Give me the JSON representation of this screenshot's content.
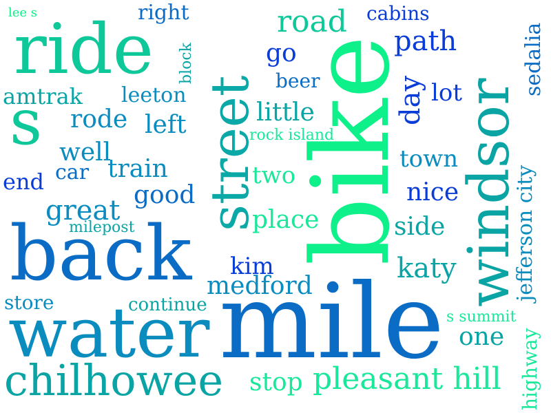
{
  "words": [
    {
      "text": "mile",
      "color": "#0a6cc4"
    },
    {
      "text": "bike",
      "color": "#0df08a"
    },
    {
      "text": "back",
      "color": "#0a6cc4"
    },
    {
      "text": "water",
      "color": "#0a8cbf"
    },
    {
      "text": "windsor",
      "color": "#0aa4a4"
    },
    {
      "text": "ride",
      "color": "#0fc89a"
    },
    {
      "text": "street",
      "color": "#0aa9a8"
    },
    {
      "text": "s",
      "color": "#0fc89a"
    },
    {
      "text": "chilhowee",
      "color": "#0aa4a4"
    },
    {
      "text": "pleasant hill",
      "color": "#19e89a"
    },
    {
      "text": "road",
      "color": "#0fc89a"
    },
    {
      "text": "path",
      "color": "#0a3cd8"
    },
    {
      "text": "cabins",
      "color": "#0a3cd8"
    },
    {
      "text": "right",
      "color": "#0a6cc4"
    },
    {
      "text": "lee s",
      "color": "#0df08a"
    },
    {
      "text": "go",
      "color": "#0a3cd8"
    },
    {
      "text": "beer",
      "color": "#0a6cc4"
    },
    {
      "text": "little",
      "color": "#0aa4a4"
    },
    {
      "text": "day",
      "color": "#0a3cd8"
    },
    {
      "text": "lot",
      "color": "#0a3cd8"
    },
    {
      "text": "sedalia",
      "color": "#0a6cc4"
    },
    {
      "text": "amtrak",
      "color": "#0aa4a4"
    },
    {
      "text": "leeton",
      "color": "#0a8cbf"
    },
    {
      "text": "block",
      "color": "#0aa4a4"
    },
    {
      "text": "rode",
      "color": "#0a8cbf"
    },
    {
      "text": "left",
      "color": "#0a8cbf"
    },
    {
      "text": "rock island",
      "color": "#19e89a"
    },
    {
      "text": "well",
      "color": "#0a8cbf"
    },
    {
      "text": "car",
      "color": "#0a6cc4"
    },
    {
      "text": "train",
      "color": "#0a8cbf"
    },
    {
      "text": "end",
      "color": "#0a3cd8"
    },
    {
      "text": "two",
      "color": "#19e89a"
    },
    {
      "text": "town",
      "color": "#0a8cbf"
    },
    {
      "text": "jefferson city",
      "color": "#0a8cbf"
    },
    {
      "text": "good",
      "color": "#0a6cc4"
    },
    {
      "text": "great",
      "color": "#0a8cbf"
    },
    {
      "text": "nice",
      "color": "#0a3cd8"
    },
    {
      "text": "milepost",
      "color": "#0aa4a4"
    },
    {
      "text": "place",
      "color": "#19e89a"
    },
    {
      "text": "side",
      "color": "#0aa4a4"
    },
    {
      "text": "kim",
      "color": "#0a3cd8"
    },
    {
      "text": "katy",
      "color": "#0aa4a4"
    },
    {
      "text": "medford",
      "color": "#0a8cbf"
    },
    {
      "text": "store",
      "color": "#0a8cbf"
    },
    {
      "text": "continue",
      "color": "#0aa4a4"
    },
    {
      "text": "s summit",
      "color": "#19e89a"
    },
    {
      "text": "one",
      "color": "#0aa4a4"
    },
    {
      "text": "highway",
      "color": "#19e89a"
    },
    {
      "text": "stop",
      "color": "#19e89a"
    }
  ]
}
